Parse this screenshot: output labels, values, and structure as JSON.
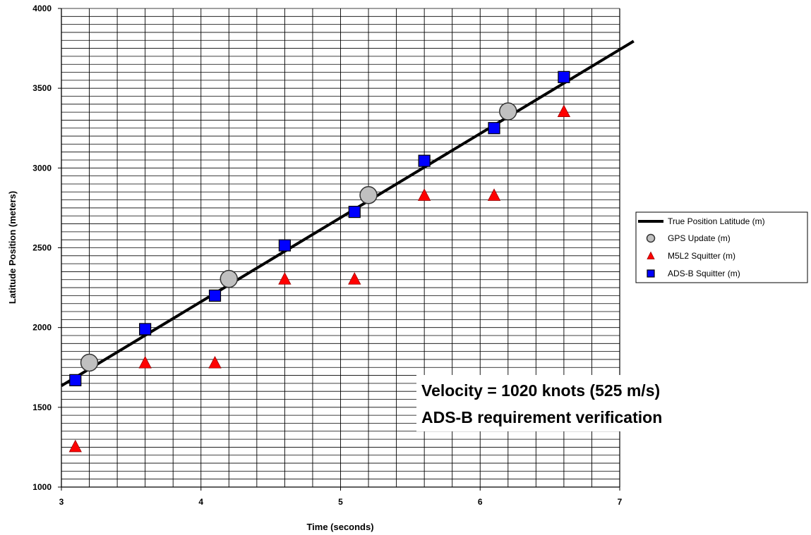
{
  "chart_data": {
    "type": "scatter",
    "xlabel": "Time (seconds)",
    "ylabel": "Latitude Position (meters)",
    "xlim": [
      3,
      7
    ],
    "ylim": [
      1000,
      4000
    ],
    "x_ticks": [
      3,
      4,
      5,
      6,
      7
    ],
    "y_ticks": [
      1000,
      1500,
      2000,
      2500,
      3000,
      3500,
      4000
    ],
    "grid": true,
    "legend_position": "right",
    "series": [
      {
        "name": "True Position Latitude (m)",
        "kind": "line",
        "color": "#000000",
        "x": [
          3.0,
          7.1
        ],
        "y": [
          1635,
          3795
        ]
      },
      {
        "name": "GPS Update (m)",
        "kind": "circle",
        "color": "#c0c0c0",
        "x": [
          3.2,
          4.2,
          5.2,
          6.2
        ],
        "y": [
          1780,
          2305,
          2830,
          3355
        ]
      },
      {
        "name": "M5L2 Squitter (m)",
        "kind": "triangle",
        "color": "#ff0000",
        "x": [
          3.1,
          3.6,
          4.1,
          4.6,
          5.1,
          5.6,
          6.1,
          6.6
        ],
        "y": [
          1255,
          1780,
          1780,
          2305,
          2305,
          2830,
          2830,
          3355
        ]
      },
      {
        "name": "ADS-B Squitter (m)",
        "kind": "square",
        "color": "#0000ff",
        "x": [
          3.1,
          3.6,
          4.1,
          4.6,
          5.1,
          5.6,
          6.1,
          6.6
        ],
        "y": [
          1670,
          1990,
          2200,
          2515,
          2725,
          3045,
          3250,
          3570
        ]
      }
    ],
    "annotations": [
      "Velocity = 1020 knots (525 m/s)",
      "ADS-B requirement verification"
    ]
  }
}
